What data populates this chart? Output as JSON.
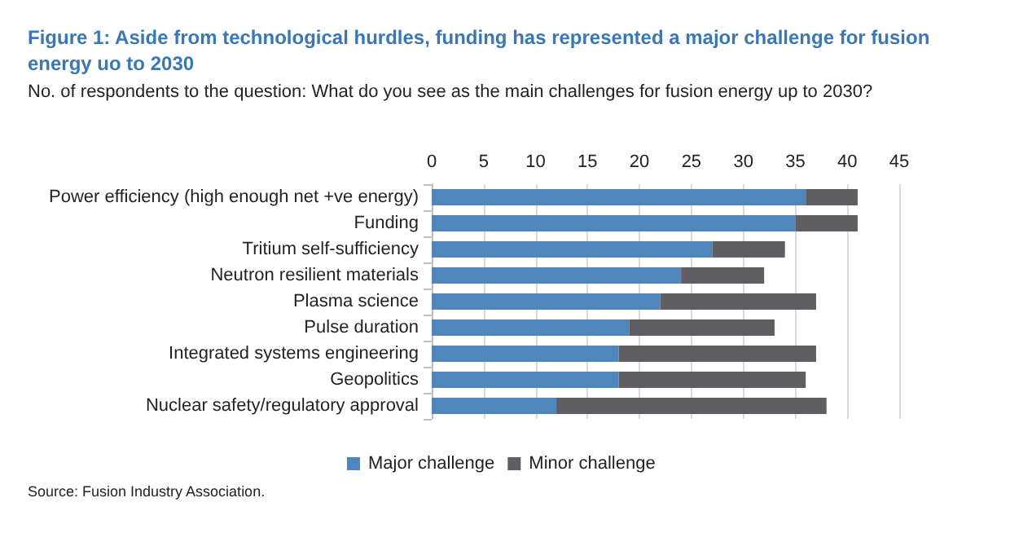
{
  "chart_data": {
    "type": "bar",
    "orientation": "horizontal",
    "stacked": true,
    "title": "Figure 1: Aside from technological hurdles, funding has represented a major challenge for fusion energy uo to 2030",
    "subtitle": "No. of respondents to the question: What do you see as the main challenges for fusion energy up to 2030?",
    "categories": [
      "Power efficiency (high enough net +ve energy)",
      "Funding",
      "Tritium self-sufficiency",
      "Neutron resilient materials",
      "Plasma science",
      "Pulse duration",
      "Integrated systems engineering",
      "Geopolitics",
      "Nuclear safety/regulatory approval"
    ],
    "series": [
      {
        "name": "Major challenge",
        "color": "#4f87bd",
        "values": [
          36,
          35,
          27,
          24,
          22,
          19,
          18,
          18,
          12
        ]
      },
      {
        "name": "Minor challenge",
        "color": "#5f5f63",
        "values": [
          5,
          6,
          7,
          8,
          15,
          14,
          19,
          18,
          26
        ]
      }
    ],
    "xlim": [
      0,
      45
    ],
    "xticks": [
      0,
      5,
      10,
      15,
      20,
      25,
      30,
      35,
      40,
      45
    ],
    "grid": "x",
    "legend": "bottom",
    "annotations": [
      "Source: Fusion Industry Association."
    ]
  }
}
